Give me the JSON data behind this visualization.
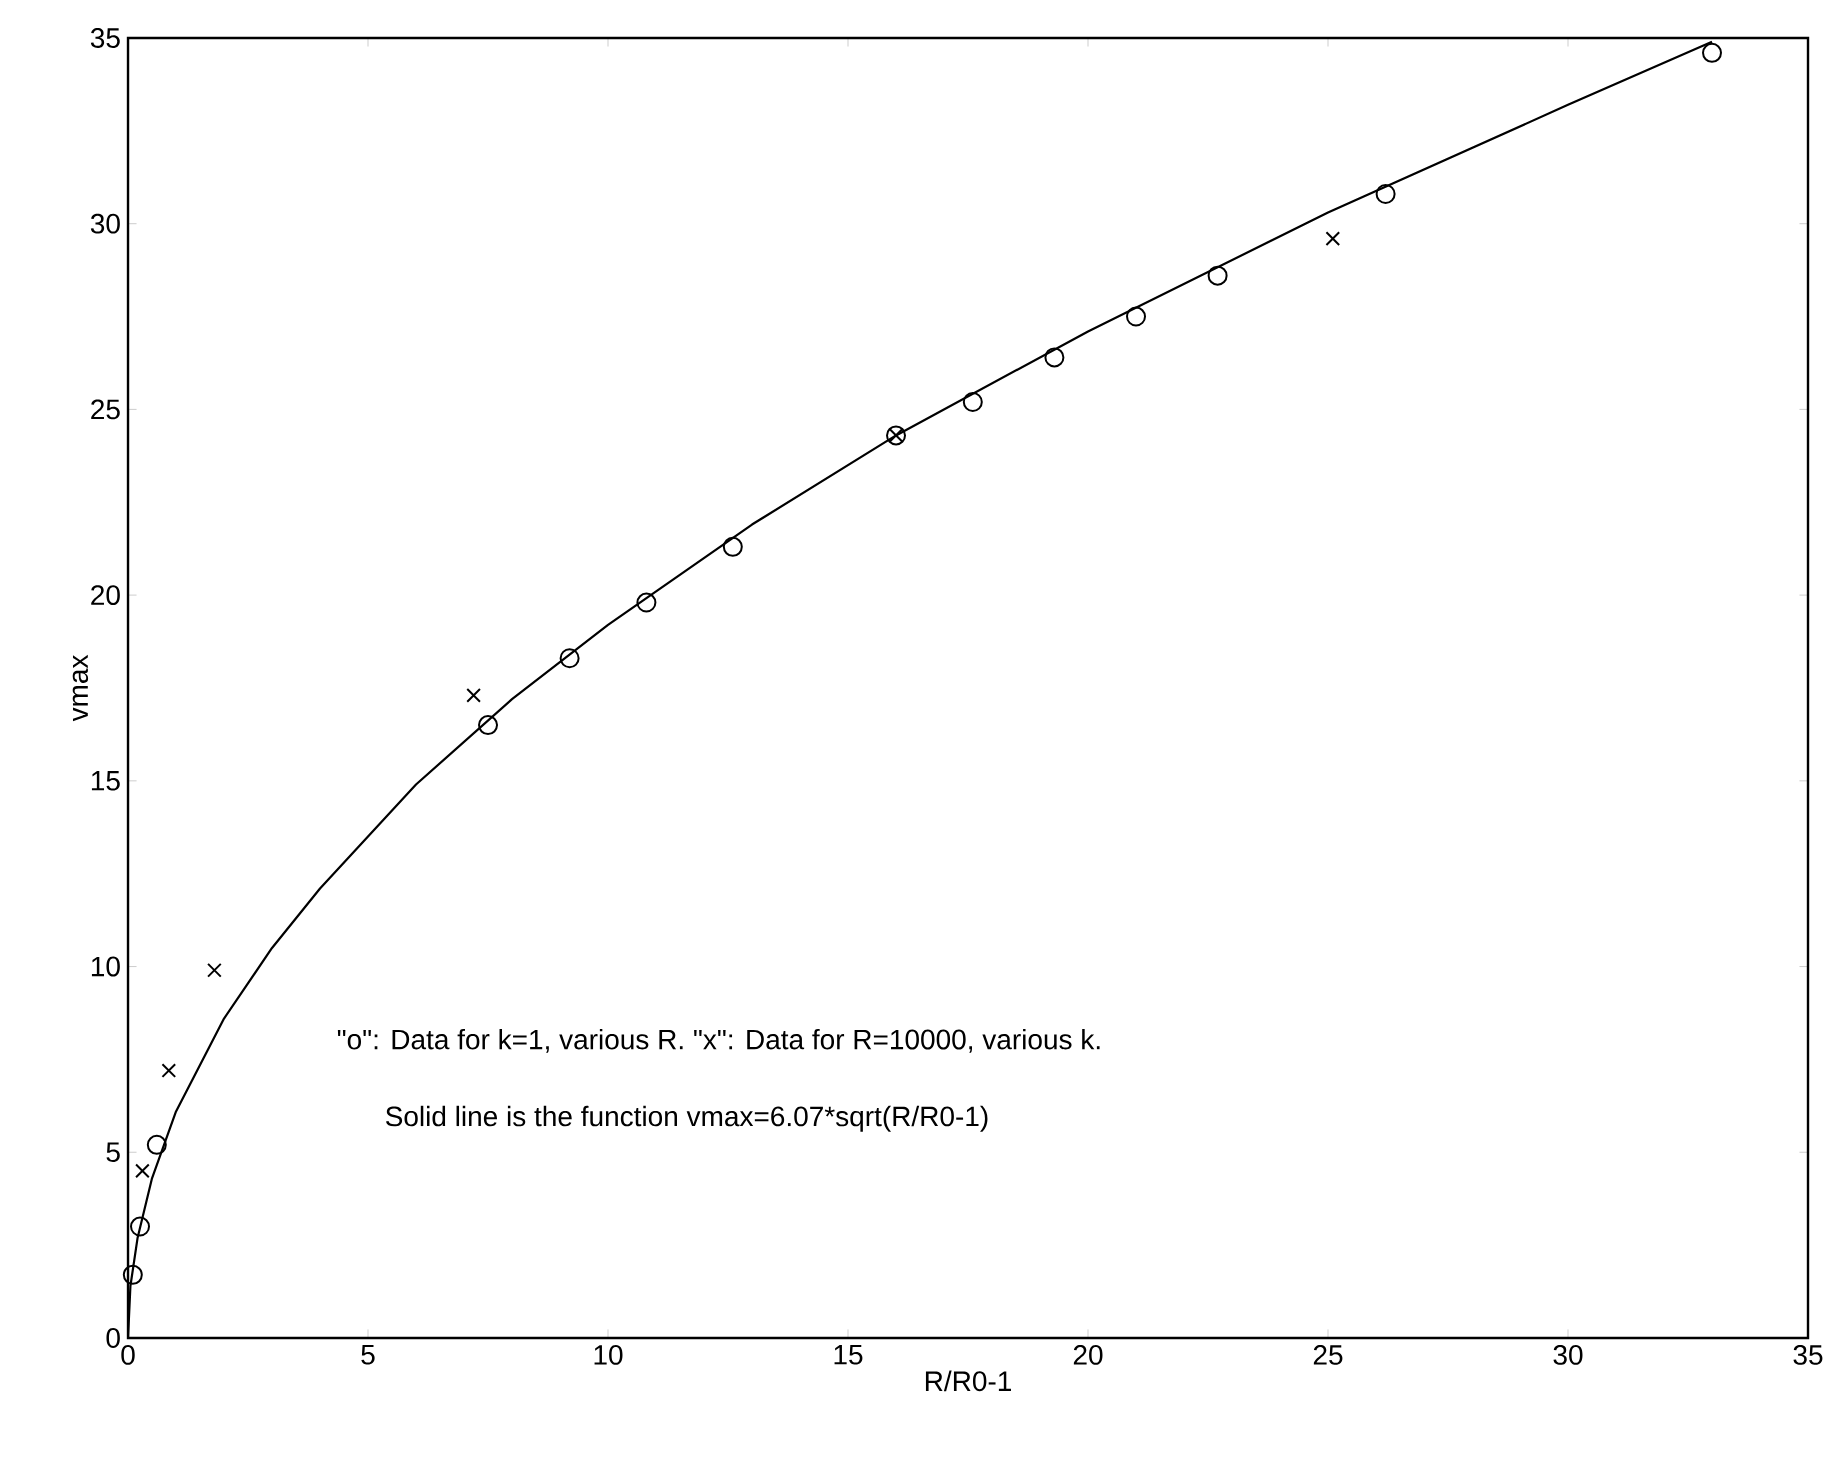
{
  "chart_data": {
    "type": "scatter",
    "xlabel": "R/R0-1",
    "ylabel": "vmax",
    "xlim": [
      0,
      35
    ],
    "ylim": [
      0,
      35
    ],
    "xticks": [
      0,
      5,
      10,
      15,
      20,
      25,
      30,
      35
    ],
    "yticks": [
      0,
      5,
      10,
      15,
      20,
      25,
      30,
      35
    ],
    "grid": false,
    "series": [
      {
        "type": "line",
        "color": "#000000",
        "marker": "none",
        "x": [
          0,
          0.05,
          0.2,
          0.5,
          1,
          2,
          3,
          4,
          6,
          8,
          10,
          13,
          16,
          20,
          25,
          30,
          33
        ],
        "values": [
          0,
          1.4,
          2.7,
          4.3,
          6.1,
          8.6,
          10.5,
          12.1,
          14.9,
          17.2,
          19.2,
          21.9,
          24.3,
          27.1,
          30.3,
          33.2,
          34.9
        ]
      },
      {
        "color": "#000000",
        "marker": "circle",
        "x": [
          0.1,
          0.25,
          0.6,
          7.5,
          9.2,
          10.8,
          12.6,
          16.0,
          17.6,
          19.3,
          21.0,
          22.7,
          26.2,
          33.0
        ],
        "values": [
          1.7,
          3.0,
          5.2,
          16.5,
          18.3,
          19.8,
          21.3,
          24.3,
          25.2,
          26.4,
          27.5,
          28.6,
          30.8,
          34.6
        ]
      },
      {
        "color": "#000000",
        "marker": "cross",
        "x": [
          0.3,
          0.85,
          1.8,
          7.2,
          16.0,
          25.1
        ],
        "values": [
          4.5,
          7.2,
          9.9,
          17.3,
          24.3,
          29.6
        ]
      }
    ],
    "annotations": [
      "\"o\": Data for k=1, various R. \"x\": Data for R=10000, various k.",
      "Solid line is the function vmax=6.07*sqrt(R/R0-1)"
    ]
  }
}
